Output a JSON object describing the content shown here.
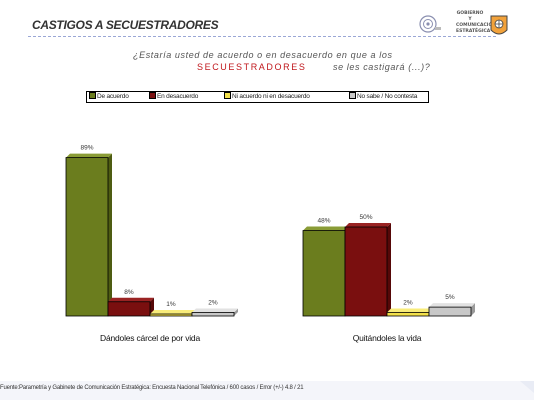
{
  "slide": {
    "title": "CASTIGOS A SECUESTRADORES",
    "question_line1": "¿Estaría usted de acuerdo o en desacuerdo en que a los",
    "question_highlight": "SECUESTRADORES",
    "question_line2": "se les castigará (...)?",
    "logo_text": "GOBIERNO Y\nCOMUNICACIÓN\nESTRATÉGICA",
    "footer": "Fuente:Parametría y Gabinete de Comunicación Estratégica: Encuesta Nacional Telefónica / 600 casos / Error (+/-) 4.8 / 21"
  },
  "colors": {
    "de_acuerdo": "#6b7d1e",
    "en_desacuerdo": "#7a0f0f",
    "ni_acuerdo": "#f2e04a",
    "no_sabe": "#c8c8c8",
    "title": "#333333",
    "highlight": "#c0171c"
  },
  "chart_data": {
    "type": "bar",
    "categories": [
      "Dándoles cárcel de por vida",
      "Quitándoles la vida"
    ],
    "series": [
      {
        "name": "De acuerdo",
        "values": [
          89,
          48
        ],
        "labels": [
          "89%",
          "48%"
        ]
      },
      {
        "name": "En desacuerdo",
        "values": [
          8,
          50
        ],
        "labels": [
          "8%",
          "50%"
        ]
      },
      {
        "name": "Ni acuerdo ni en desacuerdo",
        "values": [
          1,
          2
        ],
        "labels": [
          "1%",
          "2%"
        ]
      },
      {
        "name": "No sabe / No contesta",
        "values": [
          2,
          5
        ],
        "labels": [
          "2%",
          "5%"
        ]
      }
    ],
    "ylim": [
      0,
      100
    ],
    "legend_position": "top",
    "grid": false
  }
}
